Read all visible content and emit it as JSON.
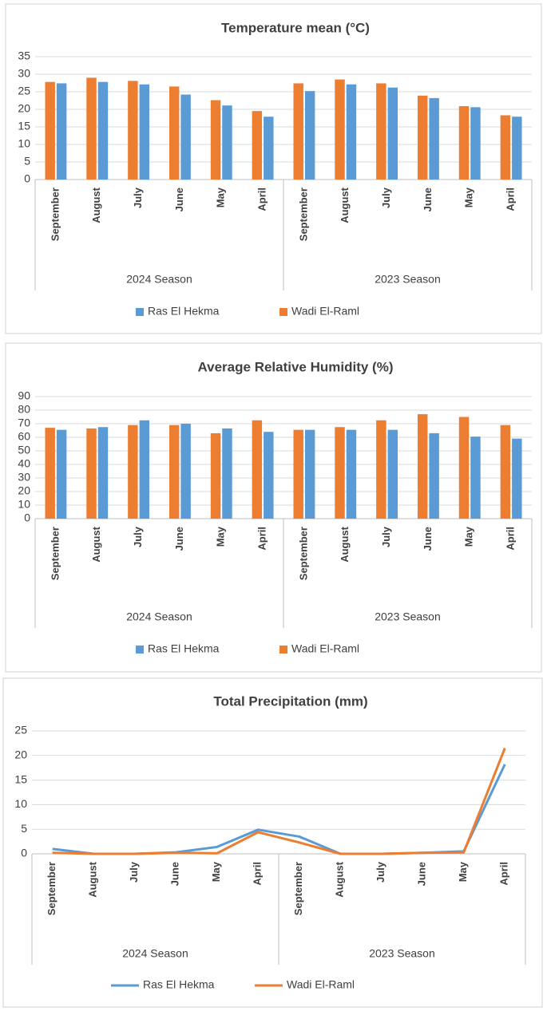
{
  "chart_data": [
    {
      "type": "bar",
      "title": "Temperature mean (°C)",
      "categories": [
        "September",
        "August",
        "July",
        "June",
        "May",
        "April",
        "September",
        "August",
        "July",
        "June",
        "May",
        "April"
      ],
      "groups": [
        "2024 Season",
        "2023 Season"
      ],
      "series": [
        {
          "name": "Ras El Hekma",
          "color": "#5b9bd5",
          "values": [
            27.4,
            27.8,
            27.1,
            24.2,
            21.1,
            17.9,
            25.2,
            27.1,
            26.2,
            23.2,
            20.6,
            17.9
          ]
        },
        {
          "name": "Wadi El-Raml",
          "color": "#ed7d31",
          "values": [
            27.8,
            29,
            28.1,
            26.5,
            22.6,
            19.5,
            27.4,
            28.5,
            27.4,
            23.9,
            20.9,
            18.3
          ]
        }
      ],
      "ylim": [
        0,
        35
      ],
      "yticks": [
        0,
        5,
        10,
        15,
        20,
        25,
        30,
        35
      ],
      "grid": true,
      "legend": "bottom"
    },
    {
      "type": "bar",
      "title": "Average Relative Humidity (%)",
      "categories": [
        "September",
        "August",
        "July",
        "June",
        "May",
        "April",
        "September",
        "August",
        "July",
        "June",
        "May",
        "April"
      ],
      "groups": [
        "2024 Season",
        "2023 Season"
      ],
      "series": [
        {
          "name": "Ras El Hekma",
          "color": "#5b9bd5",
          "values": [
            65.5,
            67.5,
            72.5,
            70,
            66.5,
            64,
            65.5,
            65.5,
            65.5,
            63,
            60.5,
            59
          ]
        },
        {
          "name": "Wadi El-Raml",
          "color": "#ed7d31",
          "values": [
            67,
            66.5,
            69,
            69,
            63,
            72.5,
            65.5,
            67.5,
            72.5,
            77,
            75,
            69
          ]
        }
      ],
      "ylim": [
        0,
        90
      ],
      "yticks": [
        0,
        10,
        20,
        30,
        40,
        50,
        60,
        70,
        80,
        90
      ],
      "grid": true,
      "legend": "bottom"
    },
    {
      "type": "line",
      "title": "Total Precipitation (mm)",
      "categories": [
        "September",
        "August",
        "July",
        "June",
        "May",
        "April",
        "September",
        "August",
        "July",
        "June",
        "May",
        "April"
      ],
      "groups": [
        "2024 Season",
        "2023 Season"
      ],
      "series": [
        {
          "name": "Ras El Hekma",
          "color": "#5b9bd5",
          "values": [
            1,
            0,
            0,
            0.3,
            1.4,
            4.9,
            3.5,
            0,
            0,
            0.2,
            0.5,
            18.2
          ]
        },
        {
          "name": "Wadi El-Raml",
          "color": "#ed7d31",
          "values": [
            0.2,
            0,
            0,
            0.2,
            0.1,
            4.4,
            2.3,
            0,
            0,
            0.2,
            0.3,
            21.5
          ]
        }
      ],
      "ylim": [
        0,
        25
      ],
      "yticks": [
        0,
        5,
        10,
        15,
        20,
        25
      ],
      "grid": true,
      "legend": "bottom"
    }
  ]
}
